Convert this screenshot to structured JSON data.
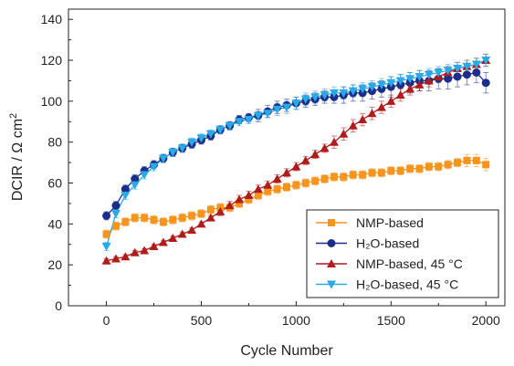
{
  "chart_data": {
    "type": "scatter",
    "xlabel": "Cycle Number",
    "ylabel_base": "DCIR / Ω cm",
    "ylabel_sup": "2",
    "xlim": [
      -200,
      2100
    ],
    "ylim": [
      0,
      145
    ],
    "x_ticks": [
      0,
      500,
      1000,
      1500,
      2000
    ],
    "y_ticks": [
      0,
      20,
      40,
      60,
      80,
      100,
      120,
      140
    ],
    "grid": false,
    "legend_position": "bottom-right",
    "series": [
      {
        "name": "NMP-based",
        "color": "#f7941d",
        "marker": "square",
        "x": [
          0,
          50,
          100,
          150,
          200,
          250,
          300,
          350,
          400,
          450,
          500,
          550,
          600,
          650,
          700,
          750,
          800,
          850,
          900,
          950,
          1000,
          1050,
          1100,
          1150,
          1200,
          1250,
          1300,
          1350,
          1400,
          1450,
          1500,
          1550,
          1600,
          1650,
          1700,
          1750,
          1800,
          1850,
          1900,
          1950,
          2000
        ],
        "y": [
          35,
          39,
          41,
          43,
          43,
          42,
          41,
          42,
          43,
          44,
          45,
          47,
          48,
          48,
          50,
          52,
          54,
          56,
          57,
          58,
          59,
          60,
          61,
          62,
          63,
          63,
          64,
          64,
          65,
          65,
          66,
          66,
          67,
          67,
          68,
          68,
          69,
          70,
          71,
          71,
          69
        ],
        "err": [
          2,
          2,
          2,
          2,
          2,
          2,
          2,
          2,
          2,
          2,
          2,
          2,
          2,
          2,
          2,
          2,
          2,
          2,
          2,
          2,
          2,
          2,
          2,
          2,
          2,
          2,
          2,
          2,
          2,
          2,
          2,
          2,
          2,
          2,
          2,
          2,
          2,
          2,
          3,
          3,
          3
        ]
      },
      {
        "name": "H₂O-based",
        "color": "#1c2e8c",
        "marker": "circle",
        "x": [
          0,
          50,
          100,
          150,
          200,
          250,
          300,
          350,
          400,
          450,
          500,
          550,
          600,
          650,
          700,
          750,
          800,
          850,
          900,
          950,
          1000,
          1050,
          1100,
          1150,
          1200,
          1250,
          1300,
          1350,
          1400,
          1450,
          1500,
          1550,
          1600,
          1650,
          1700,
          1750,
          1800,
          1850,
          1900,
          1950,
          2000
        ],
        "y": [
          44,
          49,
          57,
          62,
          66,
          69,
          72,
          75,
          77,
          79,
          81,
          83,
          86,
          88,
          91,
          92,
          93,
          95,
          97,
          98,
          99,
          100,
          101,
          102,
          102,
          103,
          104,
          104,
          105,
          106,
          107,
          108,
          109,
          110,
          110,
          111,
          111,
          112,
          113,
          114,
          109
        ],
        "err": [
          2,
          2,
          2,
          2,
          2,
          2,
          2,
          2,
          2,
          2,
          2,
          2,
          2,
          2,
          2,
          2,
          3,
          3,
          3,
          3,
          3,
          3,
          3,
          3,
          3,
          4,
          4,
          4,
          4,
          4,
          5,
          5,
          5,
          5,
          5,
          5,
          5,
          5,
          5,
          5,
          5
        ]
      },
      {
        "name": "NMP-based, 45 °C",
        "color": "#b01c1c",
        "marker": "triangle-up",
        "x": [
          0,
          50,
          100,
          150,
          200,
          250,
          300,
          350,
          400,
          450,
          500,
          550,
          600,
          650,
          700,
          750,
          800,
          850,
          900,
          950,
          1000,
          1050,
          1100,
          1150,
          1200,
          1250,
          1300,
          1350,
          1400,
          1450,
          1500,
          1550,
          1600,
          1650,
          1700,
          1750,
          1800,
          1850,
          1900,
          1950,
          2000
        ],
        "y": [
          22,
          23,
          24,
          26,
          27,
          29,
          31,
          33,
          35,
          37,
          40,
          43,
          46,
          49,
          52,
          54,
          57,
          59,
          62,
          65,
          68,
          71,
          74,
          77,
          80,
          84,
          88,
          91,
          94,
          97,
          100,
          103,
          106,
          108,
          110,
          112,
          114,
          116,
          117,
          118,
          120
        ],
        "err": [
          1,
          1,
          1,
          1,
          1,
          1,
          1,
          1,
          1,
          1,
          1,
          1,
          2,
          2,
          2,
          2,
          2,
          2,
          2,
          2,
          2,
          2,
          2,
          2,
          3,
          3,
          3,
          3,
          3,
          3,
          3,
          3,
          3,
          3,
          3,
          3,
          3,
          3,
          3,
          3,
          3
        ]
      },
      {
        "name": "H₂O-based, 45 °C",
        "color": "#29a9e6",
        "marker": "triangle-down",
        "x": [
          0,
          50,
          100,
          150,
          200,
          250,
          300,
          350,
          400,
          450,
          500,
          550,
          600,
          650,
          700,
          750,
          800,
          850,
          900,
          950,
          1000,
          1050,
          1100,
          1150,
          1200,
          1250,
          1300,
          1350,
          1400,
          1450,
          1500,
          1550,
          1600,
          1650,
          1700,
          1750,
          1800,
          1850,
          1900,
          1950,
          2000
        ],
        "y": [
          29,
          45,
          54,
          59,
          64,
          68,
          72,
          75,
          77,
          80,
          82,
          84,
          86,
          88,
          90,
          91,
          93,
          94,
          96,
          97,
          99,
          101,
          102,
          103,
          104,
          104,
          105,
          106,
          107,
          108,
          109,
          110,
          111,
          112,
          113,
          114,
          115,
          116,
          117,
          118,
          120
        ],
        "err": [
          2,
          2,
          2,
          2,
          2,
          2,
          2,
          2,
          2,
          2,
          2,
          2,
          2,
          2,
          2,
          2,
          2,
          2,
          3,
          3,
          3,
          3,
          3,
          3,
          3,
          3,
          3,
          3,
          3,
          3,
          3,
          3,
          3,
          3,
          3,
          3,
          3,
          3,
          3,
          3,
          3
        ]
      }
    ]
  }
}
